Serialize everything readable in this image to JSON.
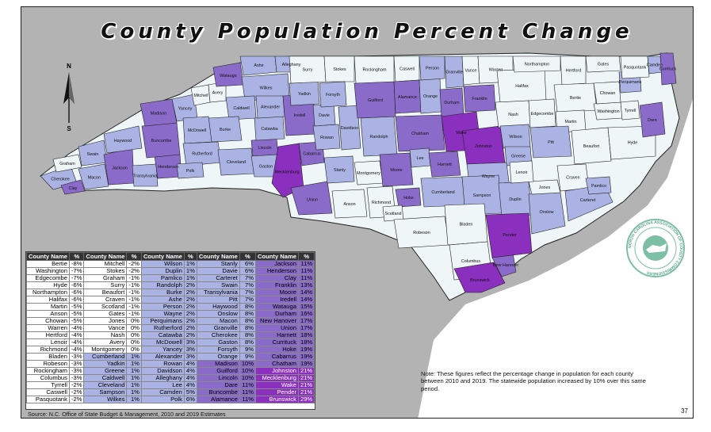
{
  "title": "County Population Percent Change",
  "note": "Note: These figures reflect the percentage change in population for each county between 2010 and 2019. The statewide population increased by 10% over this same period.",
  "source": "Source: N.C. Office of State Budget & Management, 2010 and 2019 Estimates",
  "page_number": "37",
  "compass_label_n": "N",
  "compass_label_s": "S",
  "seal_text": "NORTH CAROLINA ASSOCIATION OF COUNTY COMMISSIONERS",
  "tier_colors": {
    "t1": "#eef6f8",
    "t2": "#aab3e3",
    "t3": "#8b6bc9",
    "t4": "#8a2fbe"
  },
  "colors": {
    "water": "#b3b3b3",
    "ocean": "#ffffff",
    "border": "#222222"
  },
  "table": {
    "header_name": "County Name",
    "header_pct": "%",
    "rows": [
      [
        [
          "Bertie",
          "-8%",
          "t1"
        ],
        [
          "Mitchell",
          "-2%",
          "t1"
        ],
        [
          "Wilson",
          "1%",
          "t2"
        ],
        [
          "Stanly",
          "6%",
          "t2"
        ],
        [
          "Jackson",
          "11%",
          "t3"
        ]
      ],
      [
        [
          "Washington",
          "-7%",
          "t1"
        ],
        [
          "Stokes",
          "-2%",
          "t1"
        ],
        [
          "Duplin",
          "1%",
          "t2"
        ],
        [
          "Davie",
          "6%",
          "t2"
        ],
        [
          "Henderson",
          "11%",
          "t3"
        ]
      ],
      [
        [
          "Edgecombe",
          "-7%",
          "t1"
        ],
        [
          "Graham",
          "-1%",
          "t1"
        ],
        [
          "Pamlico",
          "1%",
          "t2"
        ],
        [
          "Carteret",
          "7%",
          "t2"
        ],
        [
          "Clay",
          "11%",
          "t3"
        ]
      ],
      [
        [
          "Hyde",
          "-6%",
          "t1"
        ],
        [
          "Surry",
          "-1%",
          "t1"
        ],
        [
          "Randolph",
          "2%",
          "t2"
        ],
        [
          "Swain",
          "7%",
          "t2"
        ],
        [
          "Franklin",
          "13%",
          "t3"
        ]
      ],
      [
        [
          "Northampton",
          "-6%",
          "t1"
        ],
        [
          "Beaufort",
          "-1%",
          "t1"
        ],
        [
          "Burke",
          "2%",
          "t2"
        ],
        [
          "Transylvania",
          "7%",
          "t2"
        ],
        [
          "Moore",
          "14%",
          "t3"
        ]
      ],
      [
        [
          "Halifax",
          "-6%",
          "t1"
        ],
        [
          "Craven",
          "-1%",
          "t1"
        ],
        [
          "Ashe",
          "2%",
          "t2"
        ],
        [
          "Pitt",
          "7%",
          "t2"
        ],
        [
          "Iredell",
          "14%",
          "t3"
        ]
      ],
      [
        [
          "Martin",
          "-5%",
          "t1"
        ],
        [
          "Scotland",
          "-1%",
          "t1"
        ],
        [
          "Person",
          "2%",
          "t2"
        ],
        [
          "Haywood",
          "8%",
          "t2"
        ],
        [
          "Watauga",
          "15%",
          "t3"
        ]
      ],
      [
        [
          "Anson",
          "-5%",
          "t1"
        ],
        [
          "Gates",
          "-1%",
          "t1"
        ],
        [
          "Wayne",
          "2%",
          "t2"
        ],
        [
          "Onslow",
          "8%",
          "t2"
        ],
        [
          "Durham",
          "16%",
          "t3"
        ]
      ],
      [
        [
          "Chowan",
          "-5%",
          "t1"
        ],
        [
          "Jones",
          "0%",
          "t1"
        ],
        [
          "Perquimans",
          "2%",
          "t2"
        ],
        [
          "Macon",
          "8%",
          "t2"
        ],
        [
          "New Hanover",
          "17%",
          "t3"
        ]
      ],
      [
        [
          "Warren",
          "-4%",
          "t1"
        ],
        [
          "Vance",
          "0%",
          "t1"
        ],
        [
          "Rutherford",
          "2%",
          "t2"
        ],
        [
          "Granville",
          "8%",
          "t2"
        ],
        [
          "Union",
          "17%",
          "t3"
        ]
      ],
      [
        [
          "Hertford",
          "-4%",
          "t1"
        ],
        [
          "Nash",
          "0%",
          "t1"
        ],
        [
          "Catawba",
          "2%",
          "t2"
        ],
        [
          "Cherokee",
          "8%",
          "t2"
        ],
        [
          "Harnett",
          "18%",
          "t3"
        ]
      ],
      [
        [
          "Lenoir",
          "-4%",
          "t1"
        ],
        [
          "Avery",
          "0%",
          "t1"
        ],
        [
          "McDowell",
          "3%",
          "t2"
        ],
        [
          "Gaston",
          "8%",
          "t2"
        ],
        [
          "Currituck",
          "18%",
          "t3"
        ]
      ],
      [
        [
          "Richmond",
          "-4%",
          "t1"
        ],
        [
          "Montgomery",
          "0%",
          "t1"
        ],
        [
          "Yancey",
          "3%",
          "t2"
        ],
        [
          "Forsyth",
          "9%",
          "t2"
        ],
        [
          "Hoke",
          "19%",
          "t3"
        ]
      ],
      [
        [
          "Bladen",
          "-3%",
          "t1"
        ],
        [
          "Cumberland",
          "1%",
          "t2"
        ],
        [
          "Alexander",
          "3%",
          "t2"
        ],
        [
          "Orange",
          "9%",
          "t2"
        ],
        [
          "Cabarrus",
          "19%",
          "t3"
        ]
      ],
      [
        [
          "Robeson",
          "-3%",
          "t1"
        ],
        [
          "Yadkin",
          "1%",
          "t2"
        ],
        [
          "Rowan",
          "4%",
          "t2"
        ],
        [
          "Madison",
          "10%",
          "t3"
        ],
        [
          "Chatham",
          "19%",
          "t3"
        ]
      ],
      [
        [
          "Rockingham",
          "-3%",
          "t1"
        ],
        [
          "Greene",
          "1%",
          "t2"
        ],
        [
          "Davidson",
          "4%",
          "t2"
        ],
        [
          "Guilford",
          "10%",
          "t3"
        ],
        [
          "Johnston",
          "21%",
          "t4"
        ]
      ],
      [
        [
          "Columbus",
          "-3%",
          "t1"
        ],
        [
          "Caldwell",
          "1%",
          "t2"
        ],
        [
          "Alleghany",
          "4%",
          "t2"
        ],
        [
          "Lincoln",
          "10%",
          "t3"
        ],
        [
          "Mecklenburg",
          "21%",
          "t4"
        ]
      ],
      [
        [
          "Tyrrell",
          "-2%",
          "t1"
        ],
        [
          "Cleveland",
          "1%",
          "t2"
        ],
        [
          "Lee",
          "4%",
          "t2"
        ],
        [
          "Dare",
          "11%",
          "t3"
        ],
        [
          "Wake",
          "21%",
          "t4"
        ]
      ],
      [
        [
          "Caswell",
          "-2%",
          "t1"
        ],
        [
          "Sampson",
          "1%",
          "t2"
        ],
        [
          "Camden",
          "5%",
          "t2"
        ],
        [
          "Buncombe",
          "11%",
          "t3"
        ],
        [
          "Pender",
          "21%",
          "t4"
        ]
      ],
      [
        [
          "Pasquotank",
          "-2%",
          "t1"
        ],
        [
          "Wilkes",
          "1%",
          "t2"
        ],
        [
          "Polk",
          "6%",
          "t2"
        ],
        [
          "Alamance",
          "11%",
          "t3"
        ],
        [
          "Brunswick",
          "29%",
          "t4"
        ]
      ]
    ]
  },
  "counties": [
    {
      "name": "Cherokee",
      "tier": "t2"
    },
    {
      "name": "Clay",
      "tier": "t3"
    },
    {
      "name": "Graham",
      "tier": "t1"
    },
    {
      "name": "Macon",
      "tier": "t2"
    },
    {
      "name": "Swain",
      "tier": "t2"
    },
    {
      "name": "Jackson",
      "tier": "t3"
    },
    {
      "name": "Haywood",
      "tier": "t2"
    },
    {
      "name": "Transylvania",
      "tier": "t2"
    },
    {
      "name": "Henderson",
      "tier": "t3"
    },
    {
      "name": "Buncombe",
      "tier": "t3"
    },
    {
      "name": "Madison",
      "tier": "t3"
    },
    {
      "name": "Yancey",
      "tier": "t2"
    },
    {
      "name": "Mitchell",
      "tier": "t1"
    },
    {
      "name": "Avery",
      "tier": "t1"
    },
    {
      "name": "Watauga",
      "tier": "t3"
    },
    {
      "name": "Ashe",
      "tier": "t2"
    },
    {
      "name": "Alleghany",
      "tier": "t2"
    },
    {
      "name": "Wilkes",
      "tier": "t2"
    },
    {
      "name": "Caldwell",
      "tier": "t2"
    },
    {
      "name": "Burke",
      "tier": "t2"
    },
    {
      "name": "McDowell",
      "tier": "t2"
    },
    {
      "name": "Rutherford",
      "tier": "t2"
    },
    {
      "name": "Polk",
      "tier": "t2"
    },
    {
      "name": "Cleveland",
      "tier": "t2"
    },
    {
      "name": "Lincoln",
      "tier": "t3"
    },
    {
      "name": "Catawba",
      "tier": "t2"
    },
    {
      "name": "Alexander",
      "tier": "t2"
    },
    {
      "name": "Iredell",
      "tier": "t3"
    },
    {
      "name": "Gaston",
      "tier": "t2"
    },
    {
      "name": "Mecklenburg",
      "tier": "t4"
    },
    {
      "name": "Cabarrus",
      "tier": "t3"
    },
    {
      "name": "Union",
      "tier": "t3"
    },
    {
      "name": "Rowan",
      "tier": "t2"
    },
    {
      "name": "Davie",
      "tier": "t2"
    },
    {
      "name": "Yadkin",
      "tier": "t2"
    },
    {
      "name": "Surry",
      "tier": "t1"
    },
    {
      "name": "Stokes",
      "tier": "t1"
    },
    {
      "name": "Forsyth",
      "tier": "t2"
    },
    {
      "name": "Davidson",
      "tier": "t2"
    },
    {
      "name": "Stanly",
      "tier": "t2"
    },
    {
      "name": "Anson",
      "tier": "t1"
    },
    {
      "name": "Montgomery",
      "tier": "t1"
    },
    {
      "name": "Randolph",
      "tier": "t2"
    },
    {
      "name": "Guilford",
      "tier": "t3"
    },
    {
      "name": "Rockingham",
      "tier": "t1"
    },
    {
      "name": "Caswell",
      "tier": "t1"
    },
    {
      "name": "Alamance",
      "tier": "t3"
    },
    {
      "name": "Orange",
      "tier": "t2"
    },
    {
      "name": "Person",
      "tier": "t2"
    },
    {
      "name": "Granville",
      "tier": "t2"
    },
    {
      "name": "Durham",
      "tier": "t3"
    },
    {
      "name": "Chatham",
      "tier": "t3"
    },
    {
      "name": "Richmond",
      "tier": "t1"
    },
    {
      "name": "Moore",
      "tier": "t3"
    },
    {
      "name": "Lee",
      "tier": "t2"
    },
    {
      "name": "Harnett",
      "tier": "t3"
    },
    {
      "name": "Hoke",
      "tier": "t3"
    },
    {
      "name": "Scotland",
      "tier": "t1"
    },
    {
      "name": "Robeson",
      "tier": "t1"
    },
    {
      "name": "Cumberland",
      "tier": "t2"
    },
    {
      "name": "Wake",
      "tier": "t4"
    },
    {
      "name": "Johnston",
      "tier": "t4"
    },
    {
      "name": "Franklin",
      "tier": "t3"
    },
    {
      "name": "Vance",
      "tier": "t1"
    },
    {
      "name": "Warren",
      "tier": "t1"
    },
    {
      "name": "Halifax",
      "tier": "t1"
    },
    {
      "name": "Nash",
      "tier": "t1"
    },
    {
      "name": "Wilson",
      "tier": "t2"
    },
    {
      "name": "Edgecombe",
      "tier": "t1"
    },
    {
      "name": "Northampton",
      "tier": "t1"
    },
    {
      "name": "Hertford",
      "tier": "t1"
    },
    {
      "name": "Bertie",
      "tier": "t1"
    },
    {
      "name": "Martin",
      "tier": "t1"
    },
    {
      "name": "Pitt",
      "tier": "t2"
    },
    {
      "name": "Greene",
      "tier": "t2"
    },
    {
      "name": "Wayne",
      "tier": "t2"
    },
    {
      "name": "Sampson",
      "tier": "t2"
    },
    {
      "name": "Duplin",
      "tier": "t2"
    },
    {
      "name": "Bladen",
      "tier": "t1"
    },
    {
      "name": "Columbus",
      "tier": "t1"
    },
    {
      "name": "Brunswick",
      "tier": "t4"
    },
    {
      "name": "New Hanover",
      "tier": "t3"
    },
    {
      "name": "Pender",
      "tier": "t4"
    },
    {
      "name": "Onslow",
      "tier": "t2"
    },
    {
      "name": "Jones",
      "tier": "t1"
    },
    {
      "name": "Lenoir",
      "tier": "t1"
    },
    {
      "name": "Craven",
      "tier": "t1"
    },
    {
      "name": "Carteret",
      "tier": "t2"
    },
    {
      "name": "Pamlico",
      "tier": "t2"
    },
    {
      "name": "Beaufort",
      "tier": "t1"
    },
    {
      "name": "Washington",
      "tier": "t1"
    },
    {
      "name": "Tyrrell",
      "tier": "t1"
    },
    {
      "name": "Hyde",
      "tier": "t1"
    },
    {
      "name": "Dare",
      "tier": "t3"
    },
    {
      "name": "Gates",
      "tier": "t1"
    },
    {
      "name": "Chowan",
      "tier": "t1"
    },
    {
      "name": "Perquimans",
      "tier": "t2"
    },
    {
      "name": "Pasquotank",
      "tier": "t1"
    },
    {
      "name": "Camden",
      "tier": "t2"
    },
    {
      "name": "Currituck",
      "tier": "t3"
    }
  ]
}
